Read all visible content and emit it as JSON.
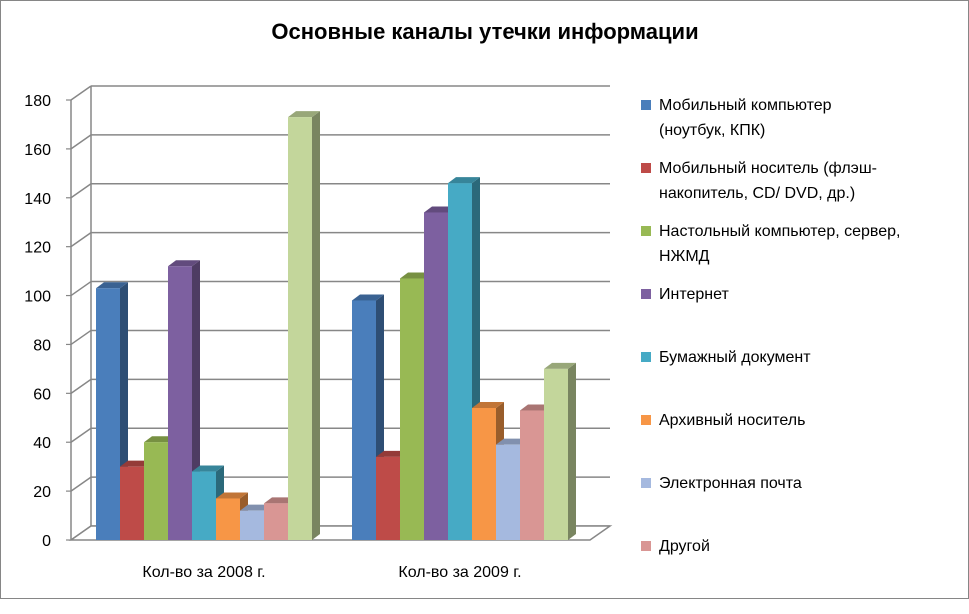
{
  "chart_data": {
    "type": "bar",
    "title": "Основные каналы утечки информации",
    "categories": [
      "Кол-во за 2008 г.",
      "Кол-во за 2009 г."
    ],
    "ylim": [
      0,
      180
    ],
    "yticks": [
      0,
      20,
      40,
      60,
      80,
      100,
      120,
      140,
      160,
      180
    ],
    "grid": true,
    "legend_position": "right",
    "series": [
      {
        "name": "Мобильный компьютер (ноутбук, КПК)",
        "values": [
          103,
          98
        ],
        "color": "#4a7ebb"
      },
      {
        "name": "Мобильный носитель (флэш-накопитель, CD/ DVD, др.)",
        "values": [
          30,
          34
        ],
        "color": "#be4b48"
      },
      {
        "name": "Настольный компьютер, сервер, НЖМД",
        "values": [
          40,
          107
        ],
        "color": "#98b954"
      },
      {
        "name": "Интернет",
        "values": [
          112,
          134
        ],
        "color": "#7d60a0"
      },
      {
        "name": "Бумажный документ",
        "values": [
          28,
          146
        ],
        "color": "#46aac5"
      },
      {
        "name": "Архивный носитель",
        "values": [
          17,
          54
        ],
        "color": "#f79646"
      },
      {
        "name": "Электронная почта",
        "values": [
          12,
          39
        ],
        "color": "#a5b9df"
      },
      {
        "name": "Другой",
        "values": [
          15,
          53
        ],
        "color": "#d99694"
      },
      {
        "name": "",
        "values": [
          173,
          70
        ],
        "color": "#c3d69b"
      }
    ],
    "legend_lines": [
      [
        "Мобильный компьютер",
        "(ноутбук, КПК)"
      ],
      [
        "Мобильный носитель (флэш-",
        "накопитель, CD/ DVD, др.)"
      ],
      [
        "Настольный компьютер, сервер,",
        "НЖМД"
      ],
      [
        "Интернет"
      ],
      [
        "Бумажный документ"
      ],
      [
        "Архивный носитель"
      ],
      [
        "Электронная почта"
      ],
      [
        "Другой"
      ]
    ]
  }
}
